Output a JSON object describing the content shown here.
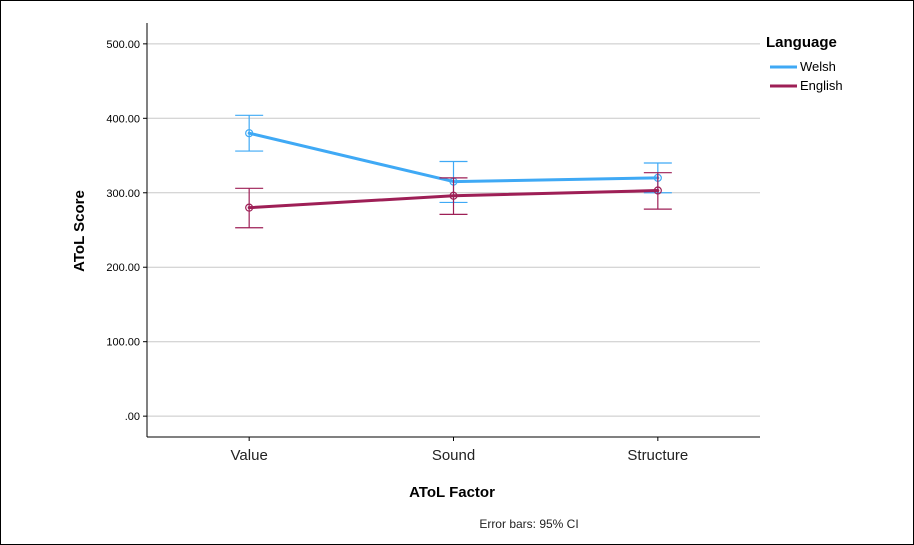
{
  "chart_data": {
    "type": "line",
    "categories": [
      "Value",
      "Sound",
      "Structure"
    ],
    "xlabel": "AToL Factor",
    "ylabel": "AToL Score",
    "ylim": [
      -28,
      528
    ],
    "yticks": [
      ".00",
      "100.00",
      "200.00",
      "300.00",
      "400.00",
      "500.00"
    ],
    "ytick_values": [
      0,
      100,
      200,
      300,
      400,
      500
    ],
    "grid": true,
    "legend": {
      "title": "Language",
      "placement": "top-right"
    },
    "series": [
      {
        "name": "Welsh",
        "color": "#3FA9F5",
        "values": [
          380,
          315,
          320
        ],
        "ci_low": [
          356,
          287,
          300
        ],
        "ci_high": [
          404,
          342,
          340
        ]
      },
      {
        "name": "English",
        "color": "#9E1F56",
        "values": [
          280,
          296,
          303
        ],
        "ci_low": [
          253,
          271,
          278
        ],
        "ci_high": [
          306,
          320,
          327
        ]
      }
    ],
    "note": "Error bars: 95% CI"
  }
}
